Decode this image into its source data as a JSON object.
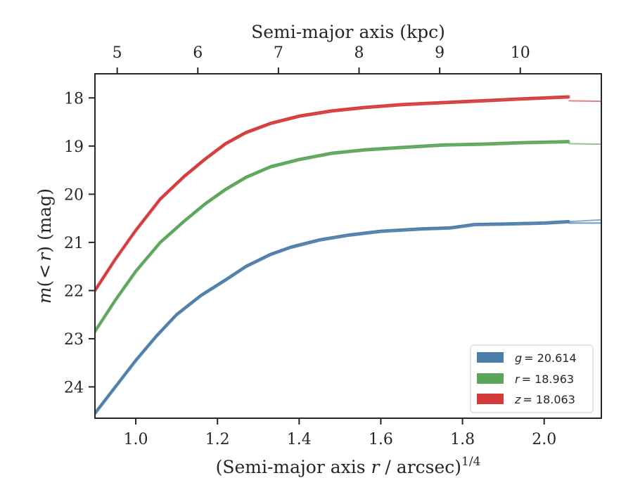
{
  "chart_data": {
    "type": "line",
    "xlabel_prefix": "(Semi-major axis ",
    "xlabel_var": "r",
    "xlabel_suffix": " / arcsec)",
    "xlabel_sup": "1/4",
    "ylabel_func": "m",
    "ylabel_open": "(",
    "ylabel_lt": "<",
    "ylabel_var": "r",
    "ylabel_close": ")",
    "ylabel_units": " (mag)",
    "top_xlabel": "Semi-major axis (kpc)",
    "xlim": [
      0.9,
      2.14
    ],
    "ylim": [
      24.65,
      17.5
    ],
    "y_inverted": true,
    "x_ticks": [
      1.0,
      1.2,
      1.4,
      1.6,
      1.8,
      2.0
    ],
    "x_tick_labels": [
      "1.0",
      "1.2",
      "1.4",
      "1.6",
      "1.8",
      "2.0"
    ],
    "y_ticks": [
      18,
      19,
      20,
      21,
      22,
      23,
      24
    ],
    "y_tick_labels": [
      "18",
      "19",
      "20",
      "21",
      "22",
      "23",
      "24"
    ],
    "top_x_ticks": [
      5,
      6,
      7,
      8,
      9,
      10
    ],
    "top_x_tick_labels": [
      "5",
      "6",
      "7",
      "8",
      "9",
      "10"
    ],
    "kpc_to_x": {
      "slope": 0.1974,
      "intercept": -0.0325
    },
    "grid": false,
    "legend_position": "lower-right",
    "series": [
      {
        "name": "g",
        "legend_value": "= 20.614",
        "color": "#4c7dab",
        "x": [
          0.9,
          0.95,
          1.0,
          1.05,
          1.1,
          1.16,
          1.22,
          1.27,
          1.33,
          1.38,
          1.45,
          1.52,
          1.6,
          1.7,
          1.77,
          1.83,
          1.9,
          2.0,
          2.06
        ],
        "y": [
          24.55,
          24.0,
          23.45,
          22.95,
          22.5,
          22.1,
          21.78,
          21.5,
          21.25,
          21.1,
          20.95,
          20.85,
          20.77,
          20.72,
          20.7,
          20.63,
          20.62,
          20.6,
          20.57
        ],
        "extrapolation": {
          "x": [
            2.06,
            2.14
          ],
          "y": [
            20.57,
            20.53
          ],
          "y_alt": [
            20.6,
            20.6
          ]
        }
      },
      {
        "name": "r",
        "legend_value": "= 18.963",
        "color": "#5aa55a",
        "x": [
          0.9,
          0.95,
          1.0,
          1.06,
          1.12,
          1.17,
          1.22,
          1.27,
          1.33,
          1.4,
          1.48,
          1.56,
          1.65,
          1.75,
          1.85,
          1.95,
          2.06
        ],
        "y": [
          22.85,
          22.2,
          21.6,
          21.0,
          20.55,
          20.2,
          19.9,
          19.65,
          19.43,
          19.28,
          19.15,
          19.08,
          19.03,
          18.98,
          18.96,
          18.93,
          18.91
        ],
        "extrapolation": {
          "x": [
            2.06,
            2.14
          ],
          "y": [
            18.95,
            18.96
          ]
        }
      },
      {
        "name": "z",
        "legend_value": "= 18.063",
        "color": "#d43a3a",
        "x": [
          0.9,
          0.95,
          1.0,
          1.06,
          1.12,
          1.17,
          1.22,
          1.27,
          1.33,
          1.4,
          1.48,
          1.56,
          1.65,
          1.75,
          1.85,
          1.95,
          2.06
        ],
        "y": [
          22.0,
          21.35,
          20.75,
          20.1,
          19.62,
          19.27,
          18.95,
          18.72,
          18.53,
          18.38,
          18.27,
          18.2,
          18.14,
          18.1,
          18.06,
          18.02,
          17.98
        ],
        "extrapolation": {
          "x": [
            2.06,
            2.14
          ],
          "y": [
            18.06,
            18.07
          ]
        }
      }
    ]
  }
}
